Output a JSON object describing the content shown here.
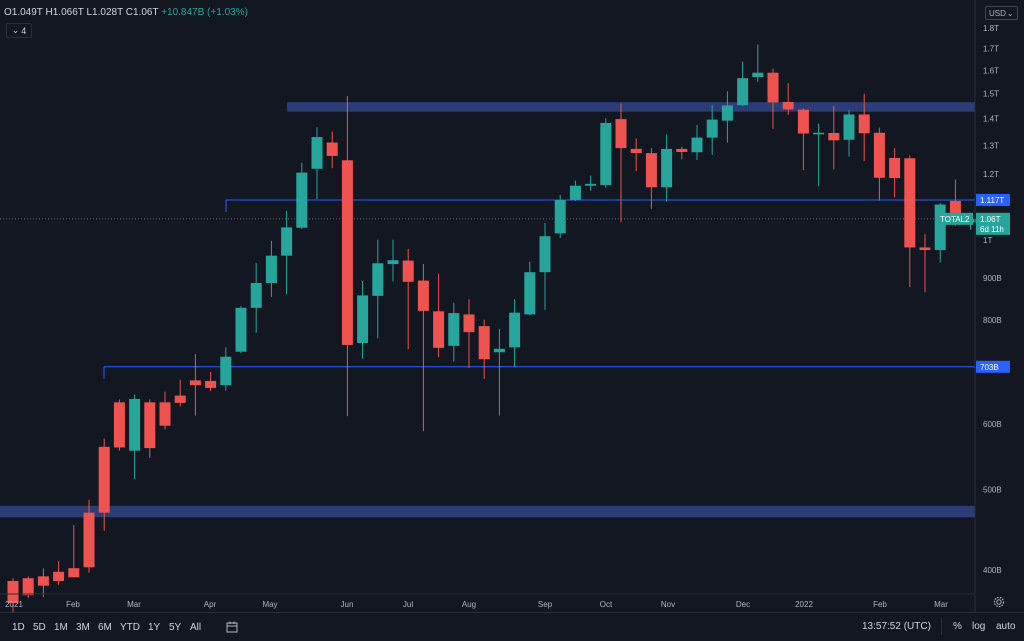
{
  "header": {
    "open": "O1.049T",
    "high": "H1.066T",
    "low": "L1.028T",
    "close": "C1.06T",
    "change": "+10.847B (+1.03%)",
    "indicator_count": "4",
    "currency": "USD"
  },
  "chart_data": {
    "type": "candlestick",
    "symbol": "TOTAL2",
    "timeframe": "1W",
    "price_axis_labels": [
      "1.8T",
      "1.7T",
      "1.6T",
      "1.5T",
      "1.4T",
      "1.3T",
      "1.2T",
      "1T",
      "900B",
      "800B",
      "700B",
      "600B",
      "500B",
      "400B"
    ],
    "time_axis_labels": [
      "2021",
      "Feb",
      "Mar",
      "Apr",
      "May",
      "Jun",
      "Jul",
      "Aug",
      "Sep",
      "Oct",
      "Nov",
      "Dec",
      "2022",
      "Feb",
      "Mar"
    ],
    "price_unit": "B USD",
    "price_range": [
      340,
      1855
    ],
    "candles": [
      [
        388,
        365,
        391,
        350
      ],
      [
        391,
        373,
        393,
        370
      ],
      [
        393,
        383,
        402,
        371
      ],
      [
        398,
        388,
        410,
        384
      ],
      [
        402,
        392,
        453,
        392
      ],
      [
        469,
        403,
        486,
        397
      ],
      [
        563,
        469,
        576,
        446
      ],
      [
        637,
        562,
        642,
        557
      ],
      [
        557,
        643,
        651,
        515
      ],
      [
        637,
        561,
        642,
        546
      ],
      [
        637,
        597,
        656,
        591
      ],
      [
        649,
        636,
        678,
        630
      ],
      [
        677,
        668,
        728,
        614
      ],
      [
        676,
        663,
        693,
        657
      ],
      [
        668,
        723,
        742,
        658
      ],
      [
        733,
        828,
        832,
        730
      ],
      [
        828,
        887,
        938,
        773
      ],
      [
        887,
        957,
        997,
        853
      ],
      [
        957,
        1035,
        1084,
        860
      ],
      [
        1034,
        1205,
        1238,
        1030
      ],
      [
        1218,
        1330,
        1367,
        1120
      ],
      [
        1310,
        1262,
        1350,
        1220
      ],
      [
        1247,
        747,
        1490,
        613
      ],
      [
        751,
        857,
        892,
        719
      ],
      [
        856,
        937,
        1000,
        761
      ],
      [
        935,
        945,
        1000,
        891
      ],
      [
        944,
        890,
        975,
        738
      ],
      [
        893,
        821,
        935,
        588
      ],
      [
        820,
        741,
        910,
        722
      ],
      [
        745,
        816,
        840,
        713
      ],
      [
        813,
        774,
        848,
        701
      ],
      [
        787,
        718,
        801,
        680
      ],
      [
        732,
        739,
        781,
        614
      ],
      [
        742,
        817,
        848,
        703
      ],
      [
        813,
        914,
        941,
        811
      ],
      [
        914,
        1010,
        1048,
        823
      ],
      [
        1018,
        1117,
        1133,
        1005
      ],
      [
        1118,
        1162,
        1179,
        1114
      ],
      [
        1162,
        1168,
        1195,
        1146
      ],
      [
        1164,
        1383,
        1401,
        1155
      ],
      [
        1398,
        1290,
        1460,
        1050
      ],
      [
        1287,
        1272,
        1325,
        1210
      ],
      [
        1272,
        1157,
        1290,
        1090
      ],
      [
        1157,
        1287,
        1340,
        1112
      ],
      [
        1287,
        1276,
        1295,
        1250
      ],
      [
        1275,
        1328,
        1375,
        1248
      ],
      [
        1328,
        1396,
        1455,
        1266
      ],
      [
        1392,
        1452,
        1510,
        1310
      ],
      [
        1453,
        1566,
        1640,
        1450
      ],
      [
        1571,
        1590,
        1720,
        1550
      ],
      [
        1590,
        1464,
        1608,
        1360
      ],
      [
        1466,
        1436,
        1545,
        1415
      ],
      [
        1435,
        1343,
        1440,
        1213
      ],
      [
        1340,
        1346,
        1380,
        1160
      ],
      [
        1345,
        1318,
        1450,
        1216
      ],
      [
        1320,
        1416,
        1433,
        1260
      ],
      [
        1416,
        1344,
        1500,
        1244
      ],
      [
        1346,
        1188,
        1365,
        1115
      ],
      [
        1255,
        1187,
        1290,
        1125
      ],
      [
        1254,
        979,
        1264,
        877
      ],
      [
        979,
        972,
        1016,
        865
      ],
      [
        972,
        1103,
        1107,
        939
      ],
      [
        1114,
        1053,
        1182,
        1040
      ],
      [
        1049,
        1060,
        1066,
        1028
      ]
    ],
    "zones": [
      {
        "from": 1427,
        "to": 1465,
        "color": "#2c3e7b"
      },
      {
        "from": 463,
        "to": 478,
        "color": "#2c3e7b"
      }
    ],
    "levels": [
      {
        "price": 1117,
        "label": "1.117T",
        "color": "#2962ff"
      },
      {
        "price": 703,
        "label": "703B",
        "color": "#2962ff"
      }
    ],
    "last_price": {
      "price": 1060,
      "label": "1.06T",
      "countdown": "6d 11h",
      "symbol_tag": "TOTAL2"
    },
    "colors": {
      "up": "#26a69a",
      "down": "#ef5350",
      "axis_text": "#b2b5be",
      "background": "#131722",
      "grid": "#1e222d"
    }
  },
  "toolbar": {
    "timeframes": [
      "1D",
      "5D",
      "1M",
      "3M",
      "6M",
      "YTD",
      "1Y",
      "5Y",
      "All"
    ],
    "compare_icon": "calendar-range-icon",
    "clock": "13:57:52 (UTC)",
    "percent": "%",
    "log": "log",
    "auto": "auto"
  }
}
